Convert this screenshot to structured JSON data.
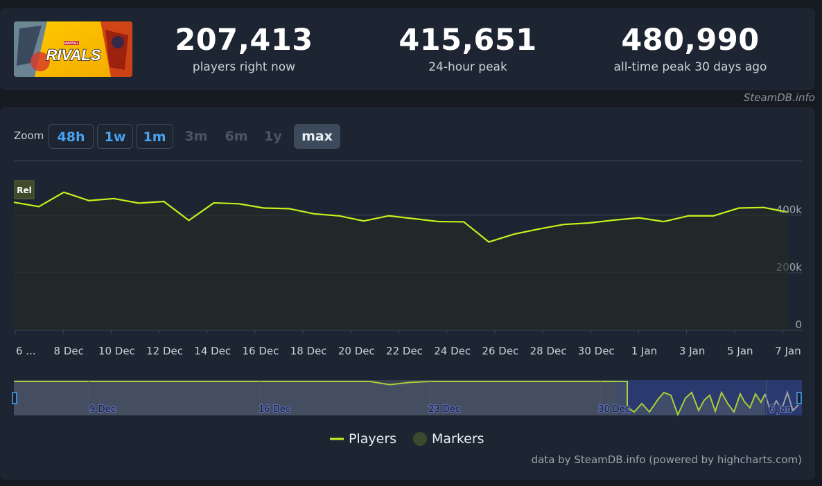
{
  "stats": [
    {
      "value": "207,413",
      "label": "players right now"
    },
    {
      "value": "415,651",
      "label": "24-hour peak"
    },
    {
      "value": "480,990",
      "label": "all-time peak 30 days ago"
    }
  ],
  "game_logo": {
    "text": "RIVALS",
    "brand": "MARVEL"
  },
  "credit_top": "SteamDB.info",
  "zoom": {
    "label": "Zoom",
    "buttons": [
      {
        "label": "48h",
        "state": "on"
      },
      {
        "label": "1w",
        "state": "on"
      },
      {
        "label": "1m",
        "state": "on"
      },
      {
        "label": "3m",
        "state": "off"
      },
      {
        "label": "6m",
        "state": "off"
      },
      {
        "label": "1y",
        "state": "off"
      },
      {
        "label": "max",
        "state": "sel"
      }
    ]
  },
  "legend": {
    "players": "Players",
    "markers": "Markers"
  },
  "credit_bottom": "data by SteamDB.info (powered by highcharts.com)",
  "colors": {
    "line": "#c6f21c",
    "marker": "#3b4a2c",
    "navigator_mask": "#2b3a6e"
  },
  "chart_data": {
    "type": "line",
    "series": [
      {
        "name": "Players",
        "x": [
          "6 Dec",
          "7 Dec",
          "8 Dec",
          "9 Dec",
          "10 Dec",
          "11 Dec",
          "12 Dec",
          "13 Dec",
          "14 Dec",
          "15 Dec",
          "16 Dec",
          "17 Dec",
          "18 Dec",
          "19 Dec",
          "20 Dec",
          "21 Dec",
          "22 Dec",
          "23 Dec",
          "24 Dec",
          "25 Dec",
          "26 Dec",
          "27 Dec",
          "28 Dec",
          "29 Dec",
          "30 Dec",
          "31 Dec",
          "1 Jan",
          "2 Jan",
          "3 Jan",
          "4 Jan",
          "5 Jan",
          "6 Jan"
        ],
        "values": [
          445000,
          430000,
          480000,
          451000,
          458000,
          442000,
          448000,
          382000,
          443000,
          440000,
          425000,
          423000,
          405000,
          398000,
          380000,
          398000,
          388000,
          378000,
          377000,
          307000,
          334000,
          352000,
          368000,
          373000,
          383000,
          391000,
          378000,
          398000,
          398000,
          425000,
          427000,
          410000
        ]
      }
    ],
    "x_tick_labels": [
      "6 ...",
      "8 Dec",
      "10 Dec",
      "12 Dec",
      "14 Dec",
      "16 Dec",
      "18 Dec",
      "20 Dec",
      "22 Dec",
      "24 Dec",
      "26 Dec",
      "28 Dec",
      "30 Dec",
      "1 Jan",
      "3 Jan",
      "5 Jan",
      "7 Jan"
    ],
    "y_ticks": [
      0,
      200000,
      400000
    ],
    "y_tick_labels": [
      "0",
      "200k",
      "400k"
    ],
    "ylim": [
      0,
      590000
    ],
    "grid": true,
    "markers": [
      {
        "x": "6 Dec",
        "label": "Rel"
      }
    ],
    "navigator": {
      "labels": [
        "9 Dec",
        "16 Dec",
        "23 Dec",
        "30 Dec",
        "6 Jan"
      ]
    }
  }
}
